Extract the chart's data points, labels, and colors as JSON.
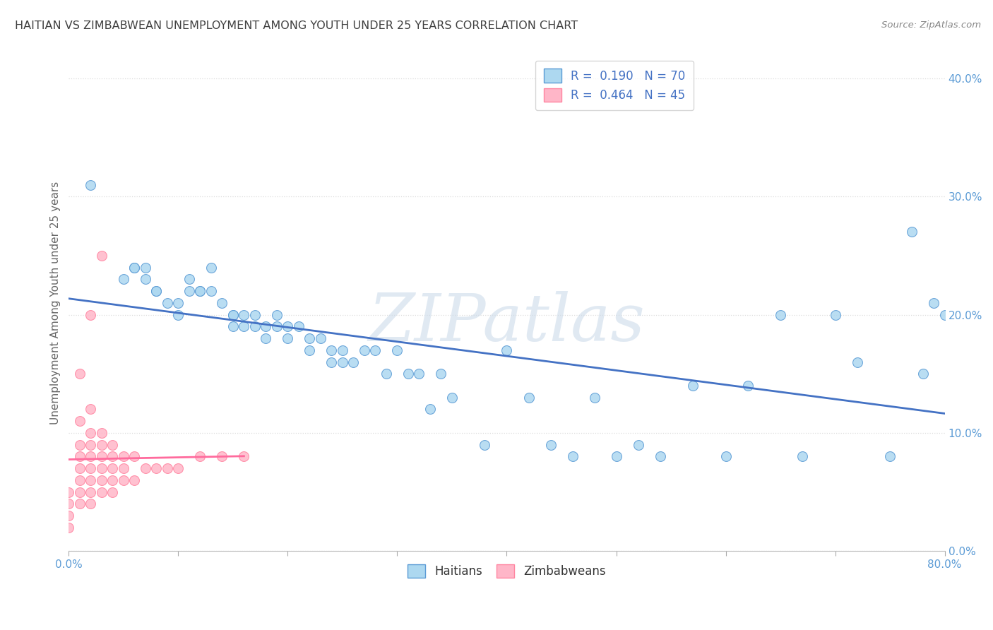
{
  "title": "HAITIAN VS ZIMBABWEAN UNEMPLOYMENT AMONG YOUTH UNDER 25 YEARS CORRELATION CHART",
  "source": "Source: ZipAtlas.com",
  "ylabel": "Unemployment Among Youth under 25 years",
  "xlim": [
    0.0,
    0.8
  ],
  "ylim": [
    0.0,
    0.42
  ],
  "r_haitian": 0.19,
  "n_haitian": 70,
  "r_zimbabwean": 0.464,
  "n_zimbabwean": 45,
  "haitian_face": "#ADD8F0",
  "haitian_edge": "#5B9BD5",
  "zimbabwean_face": "#FFB6C8",
  "zimbabwean_edge": "#FF85A1",
  "haitian_line_color": "#4472C4",
  "zimbabwean_line_color": "#FF6B9D",
  "title_color": "#404040",
  "source_color": "#888888",
  "axis_label_color": "#5B9BD5",
  "ylabel_color": "#666666",
  "grid_color": "#DDDDDD",
  "watermark_text": "ZIPatlas",
  "haitians_x": [
    0.02,
    0.05,
    0.06,
    0.06,
    0.07,
    0.07,
    0.08,
    0.08,
    0.09,
    0.1,
    0.1,
    0.11,
    0.11,
    0.12,
    0.12,
    0.13,
    0.13,
    0.14,
    0.15,
    0.15,
    0.15,
    0.16,
    0.16,
    0.17,
    0.17,
    0.18,
    0.18,
    0.19,
    0.19,
    0.2,
    0.2,
    0.21,
    0.22,
    0.22,
    0.23,
    0.24,
    0.24,
    0.25,
    0.25,
    0.26,
    0.27,
    0.28,
    0.29,
    0.3,
    0.31,
    0.32,
    0.33,
    0.34,
    0.35,
    0.38,
    0.4,
    0.42,
    0.44,
    0.46,
    0.48,
    0.5,
    0.52,
    0.54,
    0.57,
    0.6,
    0.62,
    0.65,
    0.67,
    0.7,
    0.72,
    0.75,
    0.77,
    0.78,
    0.79,
    0.8
  ],
  "haitians_y": [
    0.31,
    0.23,
    0.24,
    0.24,
    0.24,
    0.23,
    0.22,
    0.22,
    0.21,
    0.2,
    0.21,
    0.22,
    0.23,
    0.22,
    0.22,
    0.24,
    0.22,
    0.21,
    0.2,
    0.19,
    0.2,
    0.19,
    0.2,
    0.19,
    0.2,
    0.18,
    0.19,
    0.2,
    0.19,
    0.18,
    0.19,
    0.19,
    0.17,
    0.18,
    0.18,
    0.17,
    0.16,
    0.17,
    0.16,
    0.16,
    0.17,
    0.17,
    0.15,
    0.17,
    0.15,
    0.15,
    0.12,
    0.15,
    0.13,
    0.09,
    0.17,
    0.13,
    0.09,
    0.08,
    0.13,
    0.08,
    0.09,
    0.08,
    0.14,
    0.08,
    0.14,
    0.2,
    0.08,
    0.2,
    0.16,
    0.08,
    0.27,
    0.15,
    0.21,
    0.2
  ],
  "zimbabweans_x": [
    0.0,
    0.0,
    0.0,
    0.0,
    0.01,
    0.01,
    0.01,
    0.01,
    0.01,
    0.01,
    0.01,
    0.01,
    0.02,
    0.02,
    0.02,
    0.02,
    0.02,
    0.02,
    0.02,
    0.02,
    0.02,
    0.03,
    0.03,
    0.03,
    0.03,
    0.03,
    0.03,
    0.03,
    0.04,
    0.04,
    0.04,
    0.04,
    0.04,
    0.05,
    0.05,
    0.05,
    0.06,
    0.06,
    0.07,
    0.08,
    0.09,
    0.1,
    0.12,
    0.14,
    0.16
  ],
  "zimbabweans_y": [
    0.02,
    0.03,
    0.04,
    0.05,
    0.04,
    0.05,
    0.06,
    0.07,
    0.08,
    0.09,
    0.11,
    0.15,
    0.04,
    0.05,
    0.06,
    0.07,
    0.08,
    0.09,
    0.1,
    0.12,
    0.2,
    0.05,
    0.06,
    0.07,
    0.08,
    0.09,
    0.1,
    0.25,
    0.05,
    0.06,
    0.07,
    0.08,
    0.09,
    0.06,
    0.07,
    0.08,
    0.06,
    0.08,
    0.07,
    0.07,
    0.07,
    0.07,
    0.08,
    0.08,
    0.08
  ]
}
